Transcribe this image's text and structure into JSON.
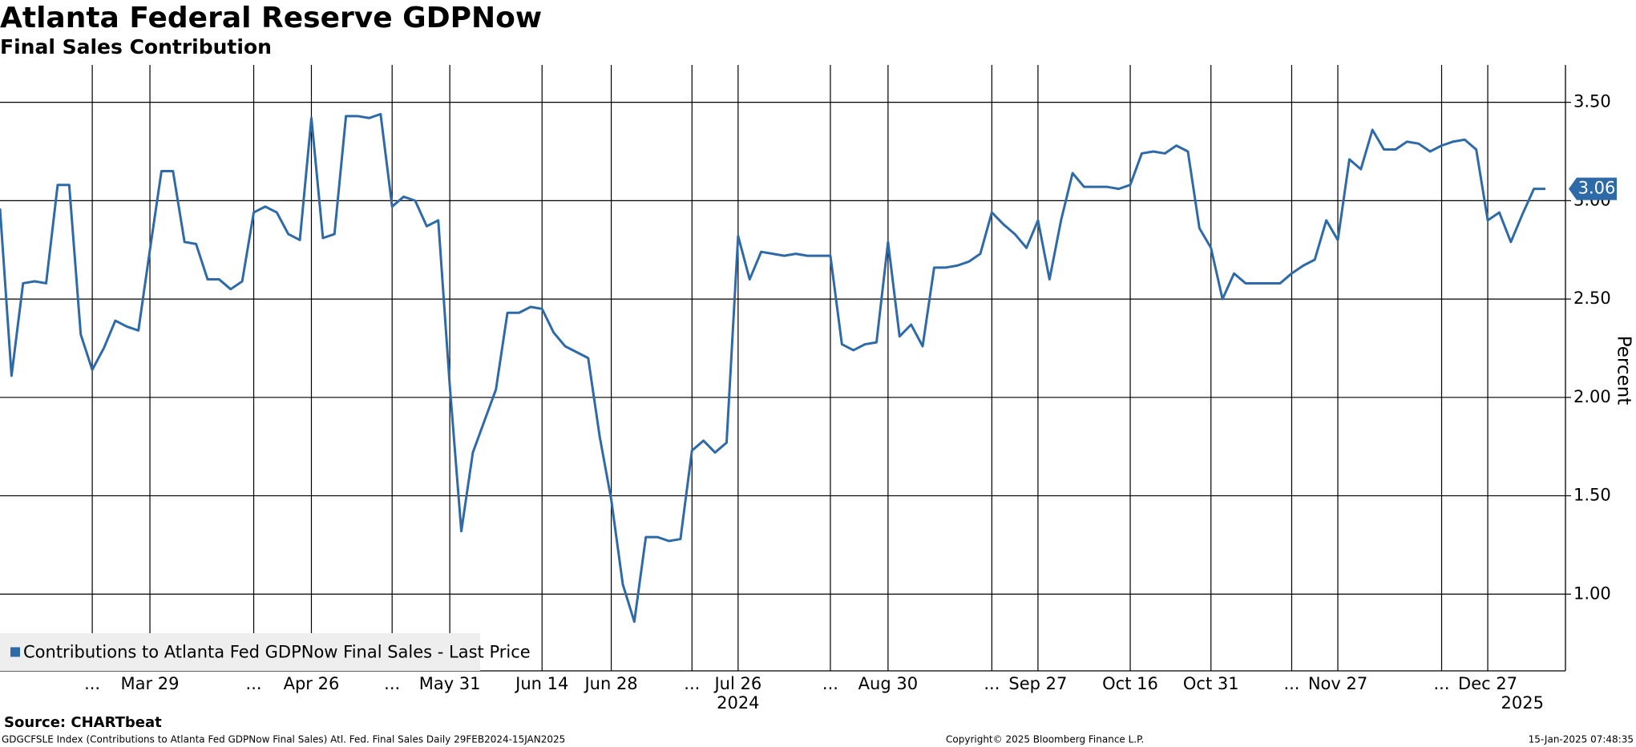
{
  "chart_data": {
    "type": "line",
    "title": "Atlanta Federal Reserve GDPNow",
    "subtitle": "Final Sales Contribution",
    "y_label": "Percent",
    "source": "Source: CHARTbeat",
    "footer_left": "GDGCFSLE Index (Contributions to Atlanta Fed GDPNow Final Sales) Atl. Fed. Final Sales  Daily 29FEB2024-15JAN2025",
    "copyright": "Copyright© 2025 Bloomberg Finance L.P.",
    "timestamp": "15-Jan-2025 07:48:35",
    "categories": [
      null,
      null,
      null,
      null,
      null,
      null,
      null,
      null,
      "...",
      null,
      null,
      null,
      null,
      "Mar 29",
      null,
      null,
      null,
      null,
      null,
      null,
      null,
      null,
      "...",
      null,
      null,
      null,
      null,
      "Apr 26",
      null,
      null,
      null,
      null,
      null,
      null,
      "...",
      null,
      null,
      null,
      null,
      "May 31",
      null,
      null,
      null,
      null,
      null,
      null,
      null,
      "Jun 14",
      null,
      null,
      null,
      null,
      null,
      "Jun 28",
      null,
      null,
      null,
      null,
      null,
      null,
      "...",
      null,
      null,
      null,
      "Jul 26",
      null,
      null,
      null,
      null,
      null,
      null,
      null,
      "...",
      null,
      null,
      null,
      null,
      "Aug 30",
      null,
      null,
      null,
      null,
      null,
      null,
      null,
      null,
      "...",
      null,
      null,
      null,
      "Sep 27",
      null,
      null,
      null,
      null,
      null,
      null,
      null,
      "Oct 16",
      null,
      null,
      null,
      null,
      null,
      null,
      "Oct 31",
      null,
      null,
      null,
      null,
      null,
      null,
      "...",
      null,
      null,
      null,
      "Nov 27",
      null,
      null,
      null,
      null,
      null,
      null,
      null,
      null,
      "...",
      null,
      null,
      null,
      "Dec 27",
      null,
      null,
      null,
      null,
      null
    ],
    "year_categories": [
      null,
      null,
      null,
      null,
      null,
      null,
      null,
      null,
      null,
      null,
      null,
      null,
      null,
      null,
      null,
      null,
      null,
      null,
      null,
      null,
      null,
      null,
      null,
      null,
      null,
      null,
      null,
      null,
      null,
      null,
      null,
      null,
      null,
      null,
      null,
      null,
      null,
      null,
      null,
      null,
      null,
      null,
      null,
      null,
      null,
      null,
      null,
      null,
      null,
      null,
      null,
      null,
      null,
      null,
      null,
      null,
      null,
      null,
      null,
      null,
      null,
      null,
      null,
      null,
      "2024",
      null,
      null,
      null,
      null,
      null,
      null,
      null,
      null,
      null,
      null,
      null,
      null,
      null,
      null,
      null,
      null,
      null,
      null,
      null,
      null,
      null,
      null,
      null,
      null,
      null,
      null,
      null,
      null,
      null,
      null,
      null,
      null,
      null,
      null,
      null,
      null,
      null,
      null,
      null,
      null,
      null,
      null,
      null,
      null,
      null,
      null,
      null,
      null,
      null,
      null,
      null,
      null,
      null,
      null,
      null,
      null,
      null,
      null,
      null,
      null,
      null,
      null,
      null,
      null,
      null,
      null,
      null,
      "2025",
      null,
      null
    ],
    "series": [
      {
        "name": "Contributions to Atlanta Fed GDPNow Final Sales - Last Price",
        "color": "#2e6aa8",
        "values": [
          2.96,
          2.11,
          2.58,
          2.59,
          2.58,
          3.08,
          3.08,
          2.32,
          2.14,
          2.25,
          2.39,
          2.36,
          2.34,
          2.75,
          3.15,
          3.15,
          2.79,
          2.78,
          2.6,
          2.6,
          2.55,
          2.59,
          2.94,
          2.97,
          2.94,
          2.83,
          2.8,
          3.42,
          2.81,
          2.83,
          3.43,
          3.43,
          3.42,
          3.44,
          2.97,
          3.02,
          3.0,
          2.87,
          2.9,
          2.06,
          1.32,
          1.72,
          1.88,
          2.04,
          2.43,
          2.43,
          2.46,
          2.45,
          2.33,
          2.26,
          2.23,
          2.2,
          1.8,
          1.48,
          1.05,
          0.86,
          1.29,
          1.29,
          1.27,
          1.28,
          1.73,
          1.78,
          1.72,
          1.77,
          2.82,
          2.6,
          2.74,
          2.73,
          2.72,
          2.73,
          2.72,
          2.72,
          2.72,
          2.27,
          2.24,
          2.27,
          2.28,
          2.79,
          2.31,
          2.37,
          2.26,
          2.66,
          2.66,
          2.67,
          2.69,
          2.73,
          2.94,
          2.88,
          2.83,
          2.76,
          2.9,
          2.6,
          2.9,
          3.14,
          3.07,
          3.07,
          3.07,
          3.06,
          3.08,
          3.24,
          3.25,
          3.24,
          3.28,
          3.25,
          2.86,
          2.76,
          2.5,
          2.63,
          2.58,
          2.58,
          2.58,
          2.58,
          2.63,
          2.67,
          2.7,
          2.9,
          2.8,
          3.21,
          3.16,
          3.36,
          3.26,
          3.26,
          3.3,
          3.29,
          3.25,
          3.28,
          3.3,
          3.31,
          3.26,
          2.9,
          2.94,
          2.79,
          2.93,
          3.06,
          3.06
        ],
        "value_labels": [
          null,
          null,
          null,
          null,
          null,
          null,
          null,
          null,
          null,
          null,
          null,
          null,
          null,
          null,
          null,
          null,
          null,
          null,
          null,
          null,
          null,
          null,
          null,
          null,
          null,
          null,
          null,
          null,
          null,
          null,
          null,
          null,
          null,
          null,
          null,
          null,
          null,
          null,
          null,
          null,
          null,
          null,
          null,
          null,
          null,
          null,
          null,
          null,
          null,
          null,
          null,
          null,
          null,
          null,
          null,
          null,
          null,
          null,
          null,
          null,
          null,
          null,
          null,
          null,
          null,
          null,
          null,
          null,
          null,
          null,
          null,
          null,
          null,
          null,
          null,
          null,
          null,
          null,
          null,
          null,
          null,
          null,
          null,
          null,
          null,
          null,
          null,
          null,
          null,
          null,
          null,
          null,
          null,
          null,
          null,
          null,
          null,
          null,
          null,
          null,
          null,
          null,
          null,
          null,
          null,
          null,
          null,
          null,
          null,
          null,
          null,
          null,
          null,
          null,
          null,
          null,
          null,
          null,
          null,
          null,
          null,
          null,
          null,
          null,
          null,
          null,
          null,
          null,
          null,
          null,
          null,
          null,
          null,
          null,
          "3.06"
        ]
      }
    ],
    "ylim": [
      0.61,
      3.69
    ],
    "yticks": [
      {
        "value": 1,
        "label": "1.00"
      },
      {
        "value": 1.5,
        "label": "1.50"
      },
      {
        "value": 2,
        "label": "2.00"
      },
      {
        "value": 2.5,
        "label": "2.50"
      },
      {
        "value": 3,
        "label": "3.00"
      },
      {
        "value": 3.5,
        "label": "3.50"
      }
    ],
    "grid": true,
    "legend": "bottom-left"
  }
}
